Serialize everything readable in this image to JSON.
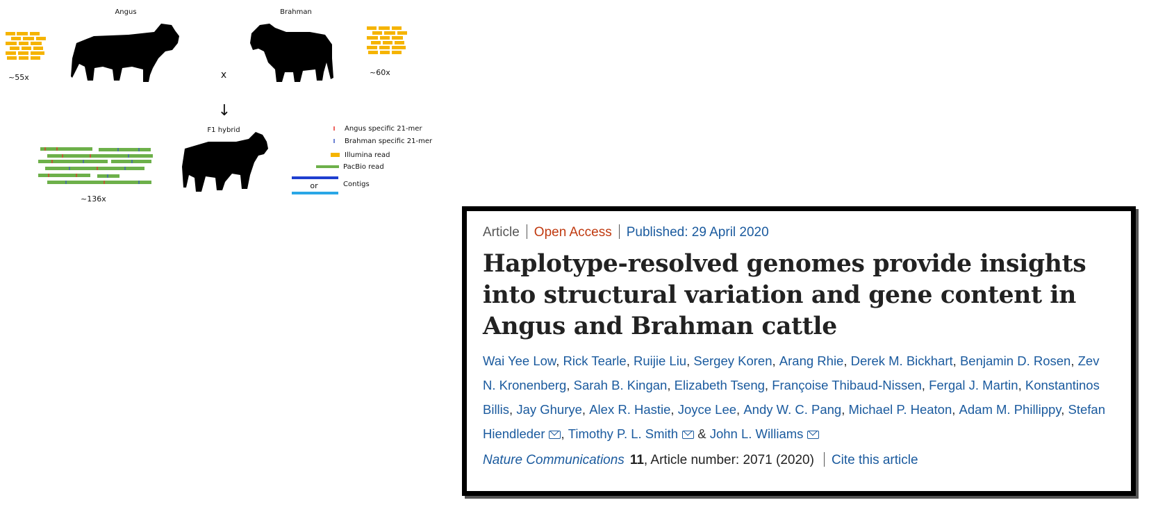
{
  "diagram": {
    "parent1_label": "Angus",
    "parent2_label": "Brahman",
    "cross_symbol": "x",
    "down_arrow": "↓",
    "parent1_coverage": "~55x",
    "parent2_coverage": "~60x",
    "hybrid_label": "F1 hybrid",
    "hybrid_coverage": "~136x",
    "legend": {
      "angus_kmer": "Angus specific 21-mer",
      "brahman_kmer": "Brahman specific 21-mer",
      "illumina": "Illumina read",
      "pacbio": "PacBio read",
      "or_label": "or",
      "contigs": "Contigs"
    },
    "colors": {
      "illumina": "#f5b400",
      "pacbio": "#6db04a",
      "angus_mark": "#e8312b",
      "brahman_mark": "#3b59c4",
      "contig_dark": "#1f3fcf",
      "contig_light": "#2aa7e6"
    }
  },
  "article": {
    "type": "Article",
    "access": "Open Access",
    "published": "Published: 29 April 2020",
    "title": "Haplotype-resolved genomes provide insights into structural variation and gene content in Angus and Brahman cattle",
    "authors": [
      {
        "name": "Wai Yee Low",
        "sep": ", "
      },
      {
        "name": "Rick Tearle",
        "sep": ", "
      },
      {
        "name": "Ruijie Liu",
        "sep": ", "
      },
      {
        "name": "Sergey Koren",
        "sep": ", "
      },
      {
        "name": "Arang Rhie",
        "sep": ", "
      },
      {
        "name": "Derek M. Bickhart",
        "sep": ", "
      },
      {
        "name": "Benjamin D. Rosen",
        "sep": ", "
      },
      {
        "name": "Zev N. Kronenberg",
        "sep": ", "
      },
      {
        "name": "Sarah B. Kingan",
        "sep": ", "
      },
      {
        "name": "Elizabeth Tseng",
        "sep": ", "
      },
      {
        "name": "Françoise Thibaud-Nissen",
        "sep": ", "
      },
      {
        "name": "Fergal J. Martin",
        "sep": ", "
      },
      {
        "name": "Konstantinos Billis",
        "sep": ", "
      },
      {
        "name": "Jay Ghurye",
        "sep": ", "
      },
      {
        "name": "Alex R. Hastie",
        "sep": ", "
      },
      {
        "name": "Joyce Lee",
        "sep": ", "
      },
      {
        "name": "Andy W. C. Pang",
        "sep": ", "
      },
      {
        "name": "Michael P. Heaton",
        "sep": ", "
      },
      {
        "name": "Adam M. Phillippy",
        "sep": ", "
      },
      {
        "name": "Stefan Hiendleder",
        "sep": ", ",
        "email": true
      },
      {
        "name": "Timothy P. L. Smith",
        "sep": " & ",
        "email": true
      },
      {
        "name": "John L. Williams",
        "sep": "",
        "email": true
      }
    ],
    "journal": "Nature Communications",
    "volume": "11",
    "article_number": ", Article number: 2071 (2020)",
    "cite_label": "Cite this article"
  }
}
